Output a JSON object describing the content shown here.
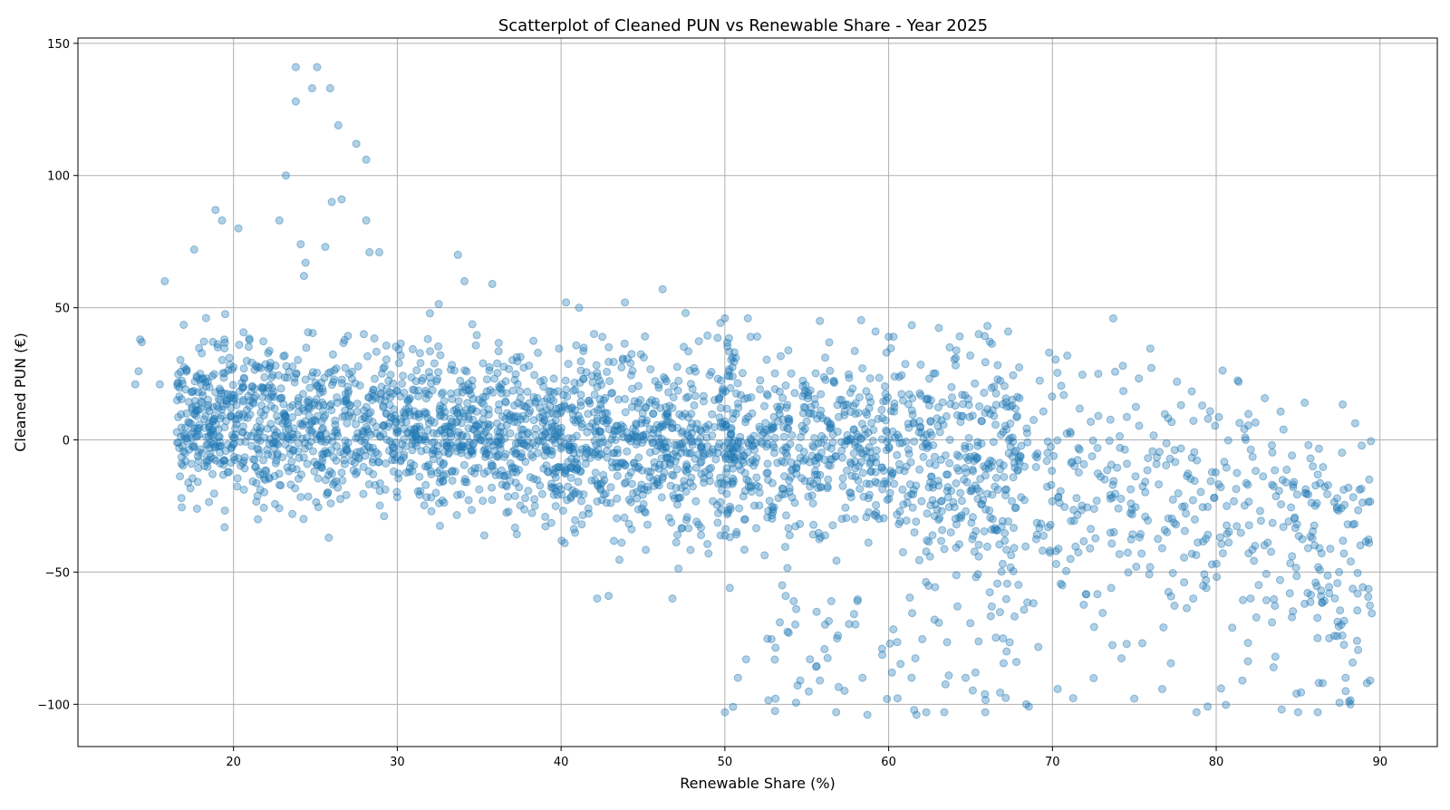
{
  "chart_data": {
    "type": "scatter",
    "title": "Scatterplot of Cleaned PUN vs Renewable Share - Year 2025",
    "xlabel": "Renewable Share (%)",
    "ylabel": "Cleaned PUN (€)",
    "xlim": [
      10.5,
      93.5
    ],
    "ylim": [
      -116,
      152
    ],
    "xticks": [
      20,
      30,
      40,
      50,
      60,
      70,
      80,
      90
    ],
    "yticks": [
      150,
      100,
      50,
      0,
      -50,
      -100
    ],
    "ytick_labels": [
      "150",
      "100",
      "50",
      "0",
      "−50",
      "−100"
    ],
    "grid": true,
    "marker_color": "#1f77b4",
    "marker_alpha": 0.35,
    "point_count": 3200,
    "series": [
      {
        "name": "PUN vs Renewable Share",
        "points": [
          [
            14.0,
            21
          ],
          [
            14.2,
            26
          ],
          [
            14.3,
            38
          ],
          [
            14.4,
            37
          ],
          [
            15.5,
            21
          ],
          [
            15.8,
            60
          ],
          [
            17.6,
            72
          ],
          [
            18.9,
            87
          ],
          [
            19.3,
            83
          ],
          [
            20.3,
            80
          ],
          [
            22.8,
            83
          ],
          [
            23.2,
            100
          ],
          [
            23.8,
            141
          ],
          [
            23.8,
            128
          ],
          [
            24.1,
            74
          ],
          [
            24.3,
            62
          ],
          [
            24.4,
            67
          ],
          [
            24.8,
            133
          ],
          [
            25.1,
            141
          ],
          [
            25.6,
            73
          ],
          [
            25.9,
            133
          ],
          [
            26.0,
            90
          ],
          [
            26.4,
            119
          ],
          [
            26.6,
            91
          ],
          [
            27.5,
            112
          ],
          [
            28.1,
            106
          ],
          [
            28.1,
            83
          ],
          [
            28.3,
            71
          ],
          [
            28.9,
            71
          ],
          [
            33.7,
            70
          ],
          [
            34.1,
            60
          ],
          [
            35.8,
            59
          ],
          [
            40.3,
            52
          ],
          [
            41.1,
            50
          ],
          [
            43.9,
            52
          ],
          [
            46.2,
            57
          ],
          [
            47.6,
            48
          ],
          [
            50.0,
            46
          ],
          [
            51.4,
            46
          ],
          [
            55.8,
            45
          ],
          [
            59.2,
            41
          ],
          [
            60.0,
            39
          ],
          [
            64.1,
            31
          ],
          [
            65.5,
            40
          ],
          [
            67.3,
            41
          ],
          [
            69.8,
            33
          ],
          [
            72.8,
            25
          ],
          [
            74.3,
            28
          ],
          [
            77.6,
            22
          ],
          [
            79.5,
            8
          ],
          [
            81.8,
            0
          ],
          [
            83.4,
            -2
          ],
          [
            85.9,
            -10
          ],
          [
            87.5,
            -50
          ],
          [
            42.2,
            -60
          ],
          [
            42.9,
            -59
          ],
          [
            46.8,
            -60
          ],
          [
            49.0,
            -43
          ],
          [
            50.3,
            -56
          ],
          [
            51.3,
            -83
          ],
          [
            50.8,
            -90
          ],
          [
            53.5,
            -55
          ],
          [
            53.9,
            -73
          ],
          [
            54.2,
            -61
          ],
          [
            54.6,
            -91
          ],
          [
            55.2,
            -83
          ],
          [
            55.6,
            -65
          ],
          [
            55.8,
            -91
          ],
          [
            56.5,
            -61
          ],
          [
            56.8,
            -103
          ],
          [
            56.9,
            -74
          ],
          [
            58.1,
            -61
          ],
          [
            58.4,
            -90
          ],
          [
            58.7,
            -104
          ],
          [
            59.6,
            -79
          ],
          [
            60.2,
            -88
          ],
          [
            61.4,
            -90
          ],
          [
            61.7,
            -104
          ],
          [
            62.3,
            -103
          ],
          [
            62.8,
            -68
          ],
          [
            63.4,
            -103
          ],
          [
            64.2,
            -63
          ],
          [
            64.7,
            -90
          ],
          [
            65.3,
            -88
          ],
          [
            65.9,
            -103
          ],
          [
            66.3,
            -63
          ],
          [
            67.2,
            -80
          ],
          [
            67.8,
            -84
          ],
          [
            68.4,
            -100
          ],
          [
            50.0,
            -103
          ],
          [
            50.5,
            -101
          ],
          [
            59.9,
            -98
          ],
          [
            84.0,
            -102
          ],
          [
            85.0,
            -103
          ],
          [
            86.2,
            -103
          ],
          [
            88.1,
            -99
          ],
          [
            89.2,
            -92
          ],
          [
            89.4,
            -91
          ],
          [
            88.6,
            -76
          ],
          [
            87.7,
            -74
          ],
          [
            86.9,
            -75
          ],
          [
            85.4,
            -62
          ],
          [
            84.5,
            -58
          ],
          [
            83.9,
            -53
          ],
          [
            82.1,
            -60
          ],
          [
            79.4,
            -56
          ],
          [
            78.6,
            -60
          ],
          [
            78.8,
            -103
          ],
          [
            80.3,
            -94
          ],
          [
            81.6,
            -91
          ],
          [
            83.5,
            -86
          ],
          [
            84.9,
            -96
          ],
          [
            86.5,
            -92
          ],
          [
            87.9,
            -90
          ]
        ]
      }
    ]
  }
}
